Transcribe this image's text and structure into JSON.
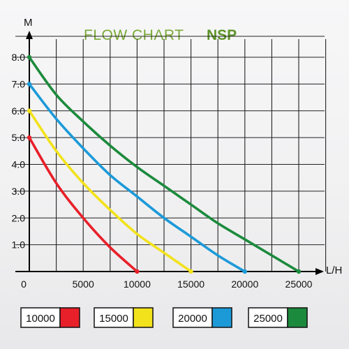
{
  "chart_data": {
    "type": "line",
    "title": "FLOW CHART",
    "title_bold": "NSP",
    "ylabel": "M",
    "xlabel": "L/H",
    "xlim": [
      0,
      25000
    ],
    "ylim": [
      0,
      8.0
    ],
    "x_ticks": [
      "0",
      "5000",
      "10000",
      "15000",
      "20000",
      "25000"
    ],
    "y_ticks": [
      "1.0",
      "2.0",
      "3.0",
      "4.0",
      "5.0",
      "6.0",
      "7.0",
      "8.0"
    ],
    "grid": true,
    "legend_position": "bottom",
    "series": [
      {
        "name": "10000",
        "color": "#e8202a",
        "x": [
          0,
          2500,
          5000,
          7500,
          10000
        ],
        "y": [
          5.0,
          3.3,
          2.0,
          0.9,
          0.0
        ]
      },
      {
        "name": "15000",
        "color": "#f2e21c",
        "x": [
          0,
          2500,
          5000,
          7500,
          10000,
          12500,
          15000
        ],
        "y": [
          6.0,
          4.5,
          3.3,
          2.3,
          1.4,
          0.7,
          0.0
        ]
      },
      {
        "name": "20000",
        "color": "#1c9ad8",
        "x": [
          0,
          2500,
          5000,
          7500,
          10000,
          12500,
          15000,
          17500,
          20000
        ],
        "y": [
          7.0,
          5.7,
          4.6,
          3.6,
          2.8,
          2.0,
          1.3,
          0.6,
          0.0
        ]
      },
      {
        "name": "25000",
        "color": "#1c8a3c",
        "x": [
          0,
          2500,
          5000,
          7500,
          10000,
          12500,
          15000,
          17500,
          20000,
          22500,
          25000
        ],
        "y": [
          8.0,
          6.6,
          5.6,
          4.7,
          3.9,
          3.2,
          2.5,
          1.8,
          1.2,
          0.6,
          0.0
        ]
      }
    ]
  }
}
